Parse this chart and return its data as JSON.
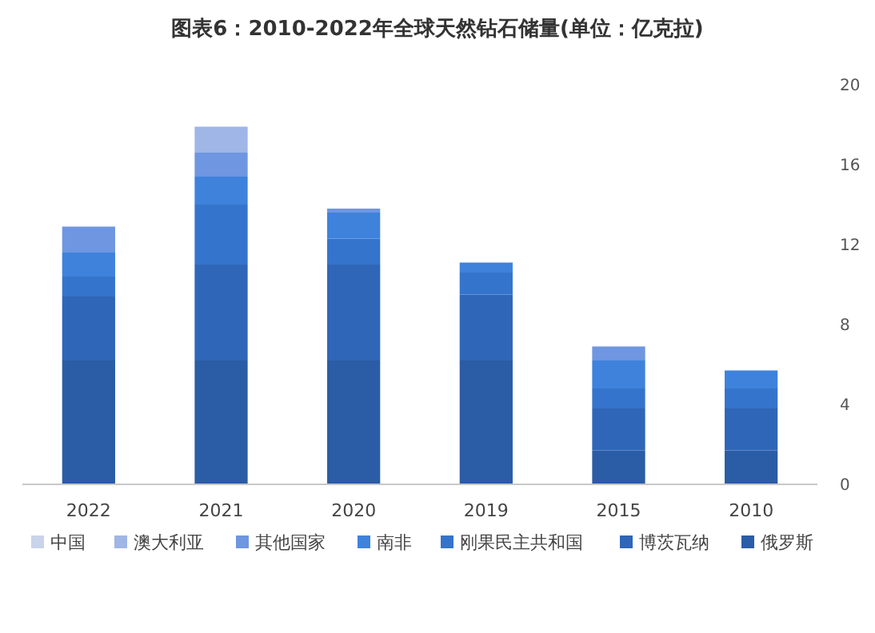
{
  "chart_data": {
    "type": "bar",
    "title": "图表6：2010-2022年全球天然钻石储量(单位：亿克拉)",
    "categories": [
      "2022",
      "2021",
      "2020",
      "2019",
      "2015",
      "2010"
    ],
    "stacked": true,
    "ylim": [
      0,
      20
    ],
    "yticks": [
      0,
      4,
      8,
      12,
      16,
      20
    ],
    "legend": "bottom",
    "series": [
      {
        "name": "俄罗斯",
        "color": "#2b5ca6",
        "values": [
          6.2,
          6.2,
          6.2,
          6.2,
          1.7,
          1.7
        ]
      },
      {
        "name": "博茨瓦纳",
        "color": "#2f66b8",
        "values": [
          3.2,
          4.8,
          4.8,
          3.3,
          2.1,
          2.1
        ]
      },
      {
        "name": "刚果民主共和国",
        "color": "#3574cc",
        "values": [
          1.0,
          3.0,
          1.3,
          1.1,
          1.0,
          1.0
        ]
      },
      {
        "name": "南非",
        "color": "#3f82dc",
        "values": [
          1.2,
          1.4,
          1.3,
          0.5,
          1.4,
          0.9
        ]
      },
      {
        "name": "其他国家",
        "color": "#6f96e0",
        "values": [
          1.3,
          1.2,
          0.2,
          null,
          0.7,
          null
        ]
      },
      {
        "name": "澳大利亚",
        "color": "#9fb6e6",
        "values": [
          null,
          1.3,
          null,
          null,
          null,
          null
        ]
      },
      {
        "name": "中国",
        "color": "#c9d3ea",
        "values": [
          null,
          null,
          null,
          null,
          null,
          null
        ]
      }
    ]
  }
}
